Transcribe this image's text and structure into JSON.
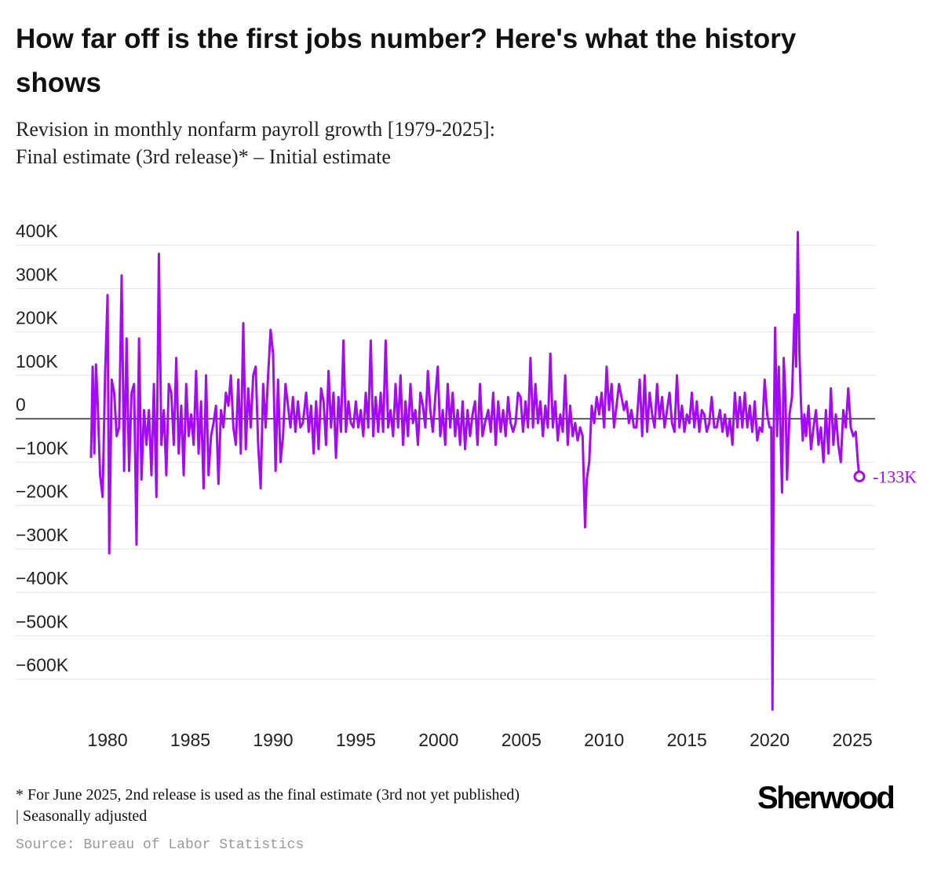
{
  "chart_data": {
    "type": "line",
    "title": "How far off is the first jobs number? Here's what the history shows",
    "subtitle": [
      "Revision in monthly nonfarm payroll growth [1979-2025]:",
      "Final estimate (3rd release)* – Initial estimate"
    ],
    "footnote": [
      "* For June 2025, 2nd release is used as the final estimate (3rd not yet published)",
      "| Seasonally adjusted"
    ],
    "source": "Source: Bureau of Labor Statistics",
    "logo": "Sherwood",
    "end_label": "-133K",
    "xlim": [
      1978.48,
      2026.37
    ],
    "xticks": [
      1980,
      1985,
      1990,
      1995,
      2000,
      2005,
      2010,
      2015,
      2020,
      2025
    ],
    "ylim": [
      -673,
      440
    ],
    "yticks": [
      {
        "value": -600,
        "label": "−600K"
      },
      {
        "value": -500,
        "label": "−500K"
      },
      {
        "value": -400,
        "label": "−400K"
      },
      {
        "value": -300,
        "label": "−300K"
      },
      {
        "value": -200,
        "label": "−200K"
      },
      {
        "value": -100,
        "label": "−100K"
      },
      0,
      {
        "value": 100,
        "label": "100K"
      },
      {
        "value": 200,
        "label": "200K"
      },
      {
        "value": 300,
        "label": "300K"
      },
      {
        "value": 400,
        "label": "400K"
      }
    ],
    "grid": true,
    "x": [
      1979.0,
      1979.1,
      1979.2,
      1979.3,
      1979.4,
      1979.55,
      1979.7,
      1979.85,
      1980.0,
      1980.1,
      1980.25,
      1980.4,
      1980.55,
      1980.7,
      1980.85,
      1981.0,
      1981.15,
      1981.3,
      1981.45,
      1981.6,
      1981.75,
      1981.9,
      1982.05,
      1982.2,
      1982.35,
      1982.5,
      1982.65,
      1982.8,
      1982.95,
      1983.1,
      1983.25,
      1983.4,
      1983.55,
      1983.7,
      1983.85,
      1984.0,
      1984.15,
      1984.3,
      1984.45,
      1984.6,
      1984.75,
      1984.9,
      1985.05,
      1985.2,
      1985.35,
      1985.5,
      1985.65,
      1985.8,
      1985.95,
      1986.1,
      1986.25,
      1986.4,
      1986.55,
      1986.7,
      1986.85,
      1987.0,
      1987.15,
      1987.3,
      1987.45,
      1987.6,
      1987.75,
      1987.9,
      1988.05,
      1988.2,
      1988.35,
      1988.5,
      1988.65,
      1988.8,
      1988.95,
      1989.1,
      1989.25,
      1989.4,
      1989.55,
      1989.7,
      1989.85,
      1990.0,
      1990.15,
      1990.3,
      1990.45,
      1990.6,
      1990.75,
      1990.9,
      1991.05,
      1991.2,
      1991.35,
      1991.5,
      1991.65,
      1991.8,
      1992.0,
      1992.15,
      1992.3,
      1992.45,
      1992.6,
      1992.75,
      1992.9,
      1993.05,
      1993.2,
      1993.35,
      1993.5,
      1993.65,
      1993.8,
      1993.95,
      1994.1,
      1994.25,
      1994.4,
      1994.55,
      1994.7,
      1994.85,
      1995.0,
      1995.15,
      1995.3,
      1995.45,
      1995.6,
      1995.75,
      1995.9,
      1996.05,
      1996.2,
      1996.35,
      1996.5,
      1996.65,
      1996.8,
      1996.95,
      1997.1,
      1997.25,
      1997.4,
      1997.55,
      1997.7,
      1997.85,
      1998.0,
      1998.15,
      1998.3,
      1998.45,
      1998.6,
      1998.75,
      1998.9,
      1999.05,
      1999.2,
      1999.35,
      1999.5,
      1999.65,
      1999.8,
      1999.95,
      2000.1,
      2000.25,
      2000.4,
      2000.55,
      2000.7,
      2000.85,
      2001.0,
      2001.15,
      2001.3,
      2001.45,
      2001.6,
      2001.75,
      2001.9,
      2002.05,
      2002.2,
      2002.35,
      2002.5,
      2002.65,
      2002.8,
      2003.0,
      2003.15,
      2003.3,
      2003.45,
      2003.6,
      2003.75,
      2003.9,
      2004.05,
      2004.2,
      2004.35,
      2004.5,
      2004.65,
      2004.8,
      2004.95,
      2005.1,
      2005.25,
      2005.4,
      2005.55,
      2005.7,
      2005.85,
      2006.0,
      2006.15,
      2006.3,
      2006.45,
      2006.6,
      2006.75,
      2006.9,
      2007.05,
      2007.2,
      2007.35,
      2007.5,
      2007.65,
      2007.8,
      2007.95,
      2008.1,
      2008.25,
      2008.4,
      2008.55,
      2008.7,
      2008.85,
      2008.95,
      2009.1,
      2009.25,
      2009.4,
      2009.55,
      2009.7,
      2009.85,
      2010.0,
      2010.15,
      2010.3,
      2010.45,
      2010.6,
      2010.75,
      2010.9,
      2011.05,
      2011.2,
      2011.35,
      2011.5,
      2011.65,
      2011.8,
      2011.95,
      2012.15,
      2012.3,
      2012.45,
      2012.6,
      2012.75,
      2012.9,
      2013.05,
      2013.2,
      2013.35,
      2013.5,
      2013.65,
      2013.8,
      2013.95,
      2014.1,
      2014.25,
      2014.4,
      2014.55,
      2014.7,
      2014.85,
      2015.0,
      2015.15,
      2015.3,
      2015.45,
      2015.6,
      2015.75,
      2015.9,
      2016.05,
      2016.2,
      2016.35,
      2016.5,
      2016.65,
      2016.8,
      2017.0,
      2017.15,
      2017.3,
      2017.45,
      2017.6,
      2017.75,
      2017.9,
      2018.05,
      2018.2,
      2018.35,
      2018.5,
      2018.65,
      2018.8,
      2018.95,
      2019.1,
      2019.25,
      2019.4,
      2019.55,
      2019.7,
      2019.85,
      2020.0,
      2020.1,
      2020.17,
      2020.25,
      2020.33,
      2020.45,
      2020.55,
      2020.65,
      2020.75,
      2020.85,
      2020.95,
      2021.05,
      2021.2,
      2021.35,
      2021.5,
      2021.6,
      2021.7,
      2021.8,
      2021.9,
      2022.0,
      2022.1,
      2022.2,
      2022.35,
      2022.5,
      2022.65,
      2022.8,
      2022.95,
      2023.1,
      2023.25,
      2023.4,
      2023.55,
      2023.7,
      2023.85,
      2024.0,
      2024.15,
      2024.3,
      2024.45,
      2024.6,
      2024.75,
      2024.9,
      2025.05,
      2025.2,
      2025.33,
      2025.42
    ],
    "series": [
      {
        "name": "Revision",
        "color": "#a30bf8",
        "values": [
          -90,
          120,
          -80,
          125,
          40,
          -130,
          -180,
          100,
          285,
          -310,
          90,
          60,
          -40,
          -20,
          330,
          -120,
          185,
          -120,
          60,
          80,
          -290,
          185,
          -140,
          20,
          -60,
          20,
          -130,
          80,
          -180,
          380,
          -60,
          20,
          -130,
          80,
          60,
          -60,
          140,
          -80,
          30,
          -130,
          80,
          -40,
          10,
          -60,
          110,
          -80,
          40,
          -160,
          100,
          -130,
          -40,
          -10,
          30,
          -150,
          20,
          -20,
          60,
          30,
          100,
          -20,
          -60,
          90,
          -80,
          220,
          -70,
          70,
          -20,
          100,
          120,
          -60,
          -160,
          80,
          -20,
          100,
          205,
          150,
          -120,
          90,
          -100,
          -40,
          80,
          30,
          -20,
          50,
          -30,
          40,
          -20,
          -10,
          60,
          -30,
          30,
          -80,
          40,
          -70,
          70,
          40,
          -60,
          110,
          -20,
          60,
          -90,
          50,
          -30,
          180,
          -30,
          40,
          -10,
          -20,
          40,
          -20,
          20,
          -40,
          60,
          -20,
          180,
          -40,
          50,
          -30,
          60,
          -30,
          180,
          -20,
          20,
          -40,
          80,
          -20,
          100,
          -60,
          40,
          -40,
          80,
          -10,
          20,
          -60,
          60,
          30,
          -20,
          110,
          20,
          -30,
          50,
          120,
          -40,
          20,
          -60,
          80,
          -20,
          60,
          -40,
          20,
          -60,
          40,
          -70,
          20,
          -40,
          10,
          40,
          -60,
          80,
          -40,
          -10,
          20,
          -30,
          60,
          -60,
          40,
          -30,
          20,
          -40,
          50,
          -10,
          -30,
          -10,
          60,
          50,
          -30,
          40,
          -20,
          140,
          -20,
          80,
          -10,
          40,
          -40,
          30,
          -20,
          150,
          -20,
          40,
          -50,
          10,
          -30,
          100,
          -60,
          30,
          -40,
          -10,
          -50,
          -20,
          -40,
          -250,
          -140,
          -100,
          30,
          -10,
          50,
          10,
          60,
          -20,
          120,
          20,
          80,
          -20,
          30,
          80,
          50,
          20,
          40,
          -10,
          20,
          -20,
          -20,
          90,
          -40,
          100,
          -30,
          60,
          10,
          -20,
          80,
          0,
          50,
          -20,
          20,
          60,
          -10,
          -30,
          100,
          -20,
          30,
          -30,
          10,
          -10,
          60,
          -20,
          40,
          -30,
          20,
          10,
          -30,
          -10,
          50,
          -20,
          -20,
          20,
          -30,
          10,
          -40,
          0,
          -60,
          60,
          -20,
          50,
          -20,
          60,
          -20,
          30,
          -30,
          40,
          -50,
          -20,
          -30,
          90,
          10,
          -20,
          -20,
          -670,
          -30,
          210,
          -40,
          120,
          -20,
          -170,
          140,
          60,
          -140,
          10,
          50,
          240,
          120,
          430,
          150,
          30,
          -50,
          10,
          -40,
          30,
          -70,
          -20,
          20,
          -60,
          -20,
          -100,
          20,
          -80,
          70,
          -60,
          10,
          -60,
          -100,
          20,
          -20,
          70,
          -20,
          -40,
          -30,
          -100,
          -133
        ]
      }
    ]
  }
}
